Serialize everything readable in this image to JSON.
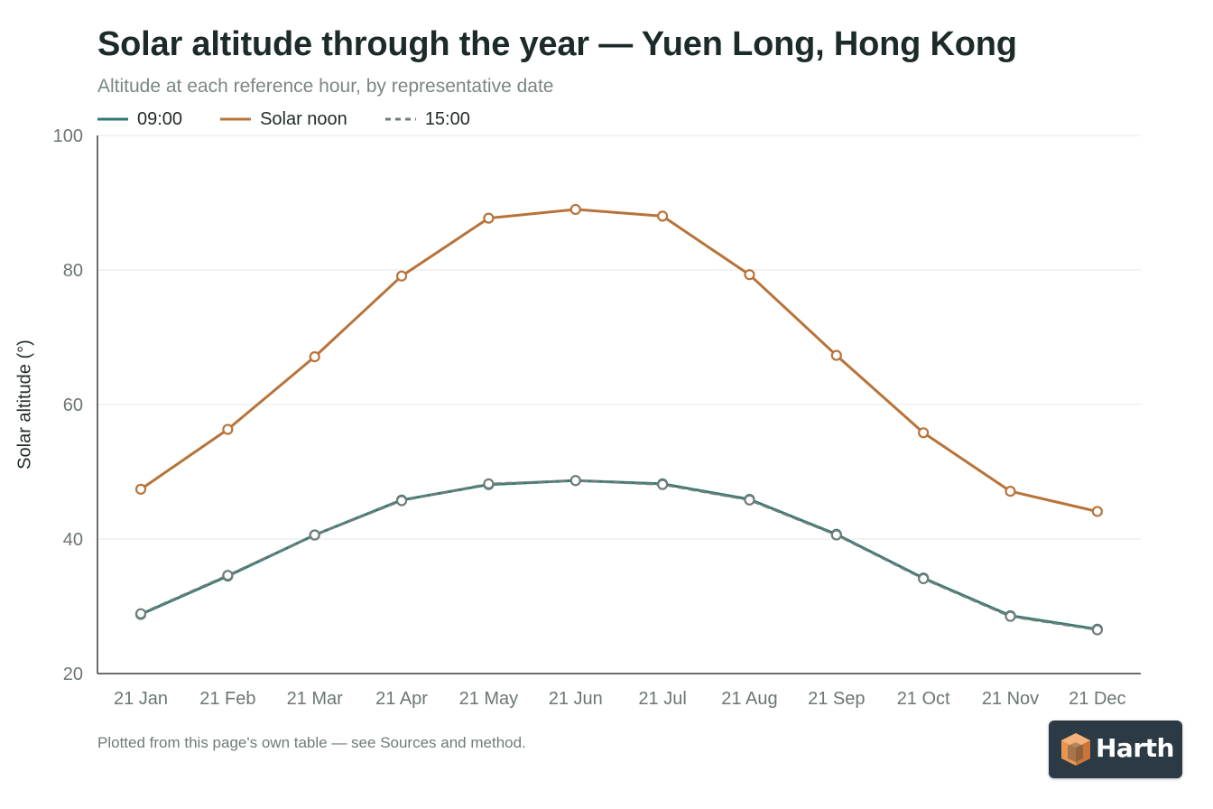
{
  "chart": {
    "title": "Solar altitude through the year — Yuen Long, Hong Kong",
    "subtitle": "Altitude at each reference hour, by representative date",
    "ylabel": "Solar altitude (°)",
    "footnote": "Plotted from this page's own table — see Sources and method.",
    "brand": "Harth"
  },
  "colors": {
    "morning": "#2e7a72",
    "noon": "#b8733a",
    "afternoon": "#6e7d79",
    "grid": "#e5e9e8",
    "axis": "#3a3f3e",
    "tick_text": "#6b7673",
    "logo_bg": "#2b3a44",
    "logo_mark": "#e8964f"
  },
  "chart_data": {
    "type": "line",
    "categories": [
      "21 Jan",
      "21 Feb",
      "21 Mar",
      "21 Apr",
      "21 May",
      "21 Jun",
      "21 Jul",
      "21 Aug",
      "21 Sep",
      "21 Oct",
      "21 Nov",
      "21 Dec"
    ],
    "series": [
      {
        "name": "09:00",
        "style": "solid",
        "values": [
          28.8,
          34.5,
          40.6,
          45.8,
          48.1,
          48.7,
          48.2,
          45.9,
          40.7,
          34.2,
          28.6,
          26.6
        ]
      },
      {
        "name": "Solar noon",
        "style": "solid",
        "values": [
          47.4,
          56.3,
          67.1,
          79.1,
          87.7,
          89.0,
          88.0,
          79.3,
          67.3,
          55.8,
          47.1,
          44.1
        ]
      },
      {
        "name": "15:00",
        "style": "dashed",
        "values": [
          28.9,
          34.6,
          40.6,
          45.7,
          48.2,
          48.7,
          48.1,
          45.8,
          40.6,
          34.1,
          28.5,
          26.5
        ]
      }
    ],
    "title": "Solar altitude through the year — Yuen Long, Hong Kong",
    "xlabel": "",
    "ylabel": "Solar altitude (°)",
    "ylim": [
      20,
      100
    ],
    "yticks": [
      20,
      40,
      60,
      80,
      100
    ],
    "grid": true,
    "legend": "top-left"
  }
}
